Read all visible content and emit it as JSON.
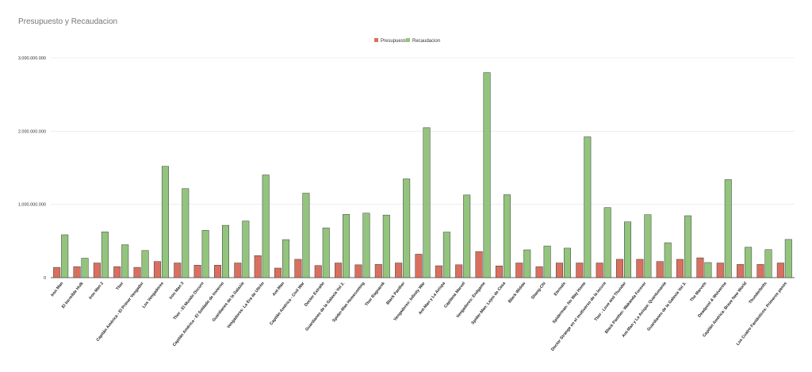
{
  "chart_data": {
    "type": "bar",
    "title": "Presupuesto y Recaudacion",
    "xlabel": "",
    "ylabel": "",
    "ylim": [
      0,
      3000000000
    ],
    "yticks": [
      0,
      1000000000,
      2000000000,
      3000000000
    ],
    "ytick_labels": [
      "0",
      "1.000.000.000",
      "2.000.000.000",
      "3.000.000.000"
    ],
    "grid": true,
    "legend_position": "top-center",
    "categories": [
      "Iron Man",
      "El Increíble Hulk",
      "Iron Man 2",
      "Thor",
      "Capitán América - El Primer Vengador",
      "Los Vengadores",
      "Iron Man 3",
      "Thor - El Mundo Oscuro",
      "Capitán América - El Soldado de Invierno",
      "Guardianes de la Galaxia",
      "Vengadores: La Era de Ultrón",
      "Ant-Man",
      "Capitán América - Civil War",
      "Doctor Extraño",
      "Guardianes de la Galaxia Vol 2.",
      "Spider-Man Homecoming",
      "Thor Ragnarok",
      "Black Panther",
      "Vengadores: Infinity War",
      "Ant-Man y La Avispa",
      "Capitana Marvel",
      "Vengadores: Endgame",
      "Spider-Man: Lejos de Casa",
      "Black Widow",
      "Shang-Chi",
      "Eternals",
      "Spiderman: No Way Home",
      "Doctor Strange en el multiverso de la locura",
      "Thor - Love and Thunder",
      "Black Panther: Wakanda Forever",
      "Ant-Man y La Avispa: Quantumania",
      "Guardianes de la Galaxia Vol 3.",
      "The Marvels",
      "Deadpool & Wolverine",
      "Capitán América: Brave New World",
      "Thunderbolts",
      "Los Cuatro Fantásticos: Primeros pasos"
    ],
    "series": [
      {
        "name": "Presupuesto",
        "color": "#d9705f",
        "values": [
          140000000,
          150000000,
          200000000,
          150000000,
          140000000,
          220000000,
          200000000,
          170000000,
          170000000,
          200000000,
          300000000,
          130000000,
          250000000,
          165000000,
          200000000,
          175000000,
          180000000,
          200000000,
          320000000,
          162000000,
          175000000,
          356000000,
          160000000,
          200000000,
          150000000,
          200000000,
          200000000,
          200000000,
          250000000,
          250000000,
          220000000,
          250000000,
          270000000,
          200000000,
          180000000,
          180000000,
          200000000
        ]
      },
      {
        "name": "Recaudacion",
        "color": "#93c47d",
        "values": [
          585000000,
          265000000,
          624000000,
          449000000,
          370000000,
          1520000000,
          1215000000,
          645000000,
          714000000,
          773000000,
          1402000000,
          519000000,
          1153000000,
          678000000,
          863000000,
          880000000,
          854000000,
          1348000000,
          2048000000,
          622000000,
          1128000000,
          2799000000,
          1132000000,
          379000000,
          432000000,
          402000000,
          1922000000,
          956000000,
          761000000,
          859000000,
          476000000,
          845000000,
          206000000,
          1338000000,
          415000000,
          382000000,
          521000000
        ]
      }
    ]
  }
}
